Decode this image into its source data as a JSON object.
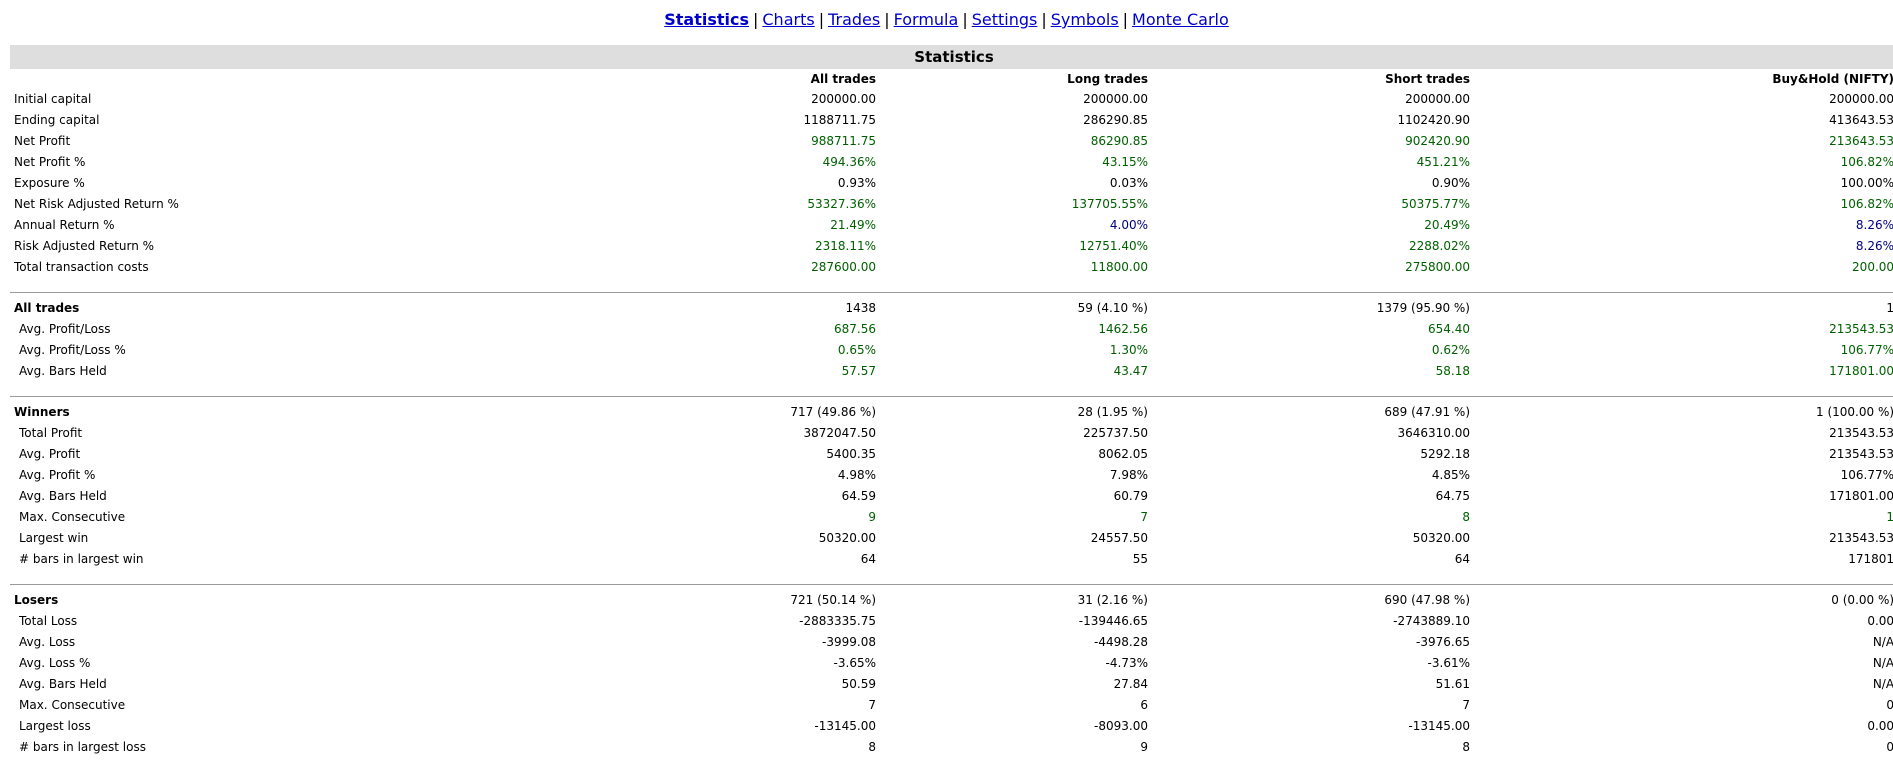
{
  "nav": {
    "links": [
      "Statistics",
      "Charts",
      "Trades",
      "Formula",
      "Settings",
      "Symbols",
      "Monte Carlo"
    ],
    "active": "Statistics"
  },
  "table": {
    "title": "Statistics",
    "columns": [
      "",
      "All trades",
      "Long trades",
      "Short trades",
      "Buy&Hold (NIFTY)"
    ],
    "sections": [
      {
        "rows": [
          {
            "label": "Initial capital",
            "values": [
              "200000.00",
              "200000.00",
              "200000.00",
              "200000.00"
            ],
            "colors": [
              "neg",
              "neg",
              "neg",
              "neg"
            ]
          },
          {
            "label": "Ending capital",
            "values": [
              "1188711.75",
              "286290.85",
              "1102420.90",
              "413643.53"
            ],
            "colors": [
              "neg",
              "neg",
              "neg",
              "neg"
            ]
          },
          {
            "label": "Net Profit",
            "values": [
              "988711.75",
              "86290.85",
              "902420.90",
              "213643.53"
            ],
            "colors": [
              "pos",
              "pos",
              "pos",
              "pos"
            ]
          },
          {
            "label": "Net Profit %",
            "values": [
              "494.36%",
              "43.15%",
              "451.21%",
              "106.82%"
            ],
            "colors": [
              "pos",
              "pos",
              "pos",
              "pos"
            ]
          },
          {
            "label": "Exposure %",
            "values": [
              "0.93%",
              "0.03%",
              "0.90%",
              "100.00%"
            ],
            "colors": [
              "neg",
              "neg",
              "neg",
              "neg"
            ]
          },
          {
            "label": "Net Risk Adjusted Return %",
            "values": [
              "53327.36%",
              "137705.55%",
              "50375.77%",
              "106.82%"
            ],
            "colors": [
              "pos",
              "pos",
              "pos",
              "pos"
            ]
          },
          {
            "label": "Annual Return %",
            "values": [
              "21.49%",
              "4.00%",
              "20.49%",
              "8.26%"
            ],
            "colors": [
              "pos",
              "bh",
              "pos",
              "bh"
            ]
          },
          {
            "label": "Risk Adjusted Return %",
            "values": [
              "2318.11%",
              "12751.40%",
              "2288.02%",
              "8.26%"
            ],
            "colors": [
              "pos",
              "pos",
              "pos",
              "bh"
            ]
          },
          {
            "label": "Total transaction costs",
            "values": [
              "287600.00",
              "11800.00",
              "275800.00",
              "200.00"
            ],
            "colors": [
              "pos",
              "pos",
              "pos",
              "pos"
            ]
          }
        ]
      },
      {
        "header": {
          "label": "All trades",
          "values": [
            "1438",
            "59 (4.10 %)",
            "1379 (95.90 %)",
            "1"
          ]
        },
        "rows": [
          {
            "label": "Avg. Profit/Loss",
            "values": [
              "687.56",
              "1462.56",
              "654.40",
              "213543.53"
            ],
            "colors": [
              "pos",
              "pos",
              "pos",
              "pos"
            ]
          },
          {
            "label": "Avg. Profit/Loss %",
            "values": [
              "0.65%",
              "1.30%",
              "0.62%",
              "106.77%"
            ],
            "colors": [
              "pos",
              "pos",
              "pos",
              "pos"
            ]
          },
          {
            "label": "Avg. Bars Held",
            "values": [
              "57.57",
              "43.47",
              "58.18",
              "171801.00"
            ],
            "colors": [
              "pos",
              "pos",
              "pos",
              "pos"
            ]
          }
        ]
      },
      {
        "header": {
          "label": "Winners",
          "values": [
            "717 (49.86 %)",
            "28 (1.95 %)",
            "689 (47.91 %)",
            "1 (100.00 %)"
          ]
        },
        "rows": [
          {
            "label": "Total Profit",
            "values": [
              "3872047.50",
              "225737.50",
              "3646310.00",
              "213543.53"
            ],
            "colors": [
              "neg",
              "neg",
              "neg",
              "neg"
            ]
          },
          {
            "label": "Avg. Profit",
            "values": [
              "5400.35",
              "8062.05",
              "5292.18",
              "213543.53"
            ],
            "colors": [
              "neg",
              "neg",
              "neg",
              "neg"
            ]
          },
          {
            "label": "Avg. Profit %",
            "values": [
              "4.98%",
              "7.98%",
              "4.85%",
              "106.77%"
            ],
            "colors": [
              "neg",
              "neg",
              "neg",
              "neg"
            ]
          },
          {
            "label": "Avg. Bars Held",
            "values": [
              "64.59",
              "60.79",
              "64.75",
              "171801.00"
            ],
            "colors": [
              "neg",
              "neg",
              "neg",
              "neg"
            ]
          },
          {
            "label": "Max. Consecutive",
            "values": [
              "9",
              "7",
              "8",
              "1"
            ],
            "colors": [
              "pos",
              "pos",
              "pos",
              "pos"
            ]
          },
          {
            "label": "Largest win",
            "values": [
              "50320.00",
              "24557.50",
              "50320.00",
              "213543.53"
            ],
            "colors": [
              "neg",
              "neg",
              "neg",
              "neg"
            ]
          },
          {
            "label": "# bars in largest win",
            "values": [
              "64",
              "55",
              "64",
              "171801"
            ],
            "colors": [
              "neg",
              "neg",
              "neg",
              "neg"
            ]
          }
        ]
      },
      {
        "header": {
          "label": "Losers",
          "values": [
            "721 (50.14 %)",
            "31 (2.16 %)",
            "690 (47.98 %)",
            "0 (0.00 %)"
          ]
        },
        "rows": [
          {
            "label": "Total Loss",
            "values": [
              "-2883335.75",
              "-139446.65",
              "-2743889.10",
              "0.00"
            ],
            "colors": [
              "neg",
              "neg",
              "neg",
              "neg"
            ]
          },
          {
            "label": "Avg. Loss",
            "values": [
              "-3999.08",
              "-4498.28",
              "-3976.65",
              "N/A"
            ],
            "colors": [
              "neg",
              "neg",
              "neg",
              "neg"
            ]
          },
          {
            "label": "Avg. Loss %",
            "values": [
              "-3.65%",
              "-4.73%",
              "-3.61%",
              "N/A"
            ],
            "colors": [
              "neg",
              "neg",
              "neg",
              "neg"
            ]
          },
          {
            "label": "Avg. Bars Held",
            "values": [
              "50.59",
              "27.84",
              "51.61",
              "N/A"
            ],
            "colors": [
              "neg",
              "neg",
              "neg",
              "neg"
            ]
          },
          {
            "label": "Max. Consecutive",
            "values": [
              "7",
              "6",
              "7",
              "0"
            ],
            "colors": [
              "neg",
              "neg",
              "neg",
              "neg"
            ]
          },
          {
            "label": "Largest loss",
            "values": [
              "-13145.00",
              "-8093.00",
              "-13145.00",
              "0.00"
            ],
            "colors": [
              "neg",
              "neg",
              "neg",
              "neg"
            ]
          },
          {
            "label": "# bars in largest loss",
            "values": [
              "8",
              "9",
              "8",
              "0"
            ],
            "colors": [
              "neg",
              "neg",
              "neg",
              "neg"
            ]
          }
        ]
      }
    ]
  },
  "colors": {
    "pos": "#006000",
    "neg": "#000000",
    "bh": "#000080",
    "link": "#0000cc",
    "title_bg": "#dedede"
  }
}
